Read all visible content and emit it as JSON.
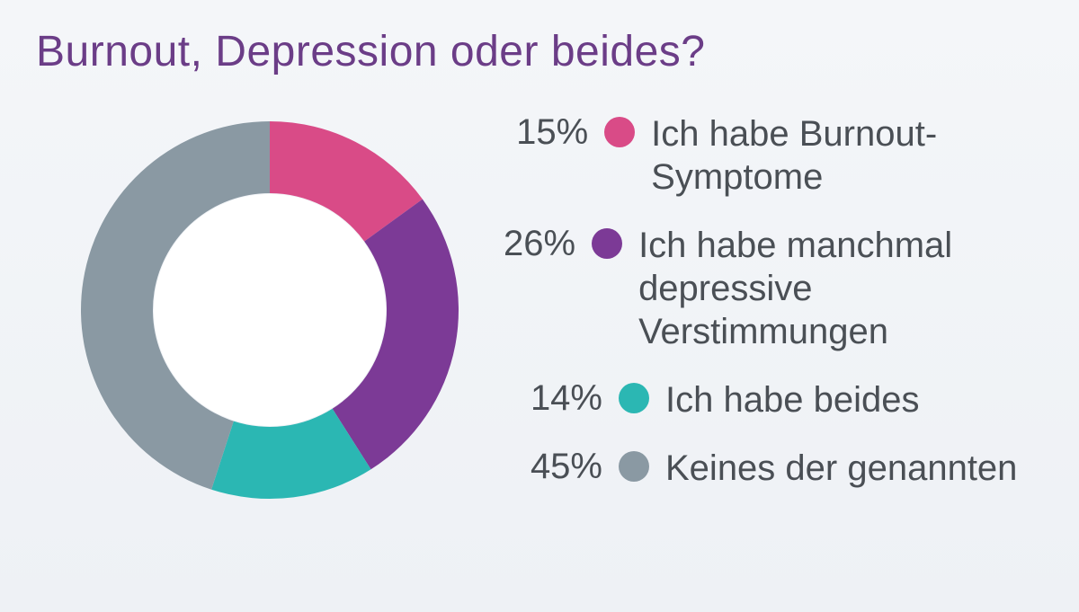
{
  "title": "Burnout, Depression oder beides?",
  "title_color": "#6b3d87",
  "title_fontsize": 48,
  "background_color": "#f2f5f8",
  "text_color": "#4a4f55",
  "legend_fontsize": 40,
  "chart": {
    "type": "donut",
    "outer_radius": 210,
    "inner_radius": 130,
    "center_fill": "#ffffff",
    "start_angle_deg": -90,
    "segments": [
      {
        "label": "Ich habe Burnout-Symptome",
        "value": 15,
        "pct": "15%",
        "color": "#d94b87"
      },
      {
        "label": "Ich habe manchmal depressive Verstimmungen",
        "value": 26,
        "pct": "26%",
        "color": "#7c3a96"
      },
      {
        "label": "Ich habe beides",
        "value": 14,
        "pct": "14%",
        "color": "#2bb7b3"
      },
      {
        "label": "Keines der genannten",
        "value": 45,
        "pct": "45%",
        "color": "#8a99a3"
      }
    ]
  }
}
